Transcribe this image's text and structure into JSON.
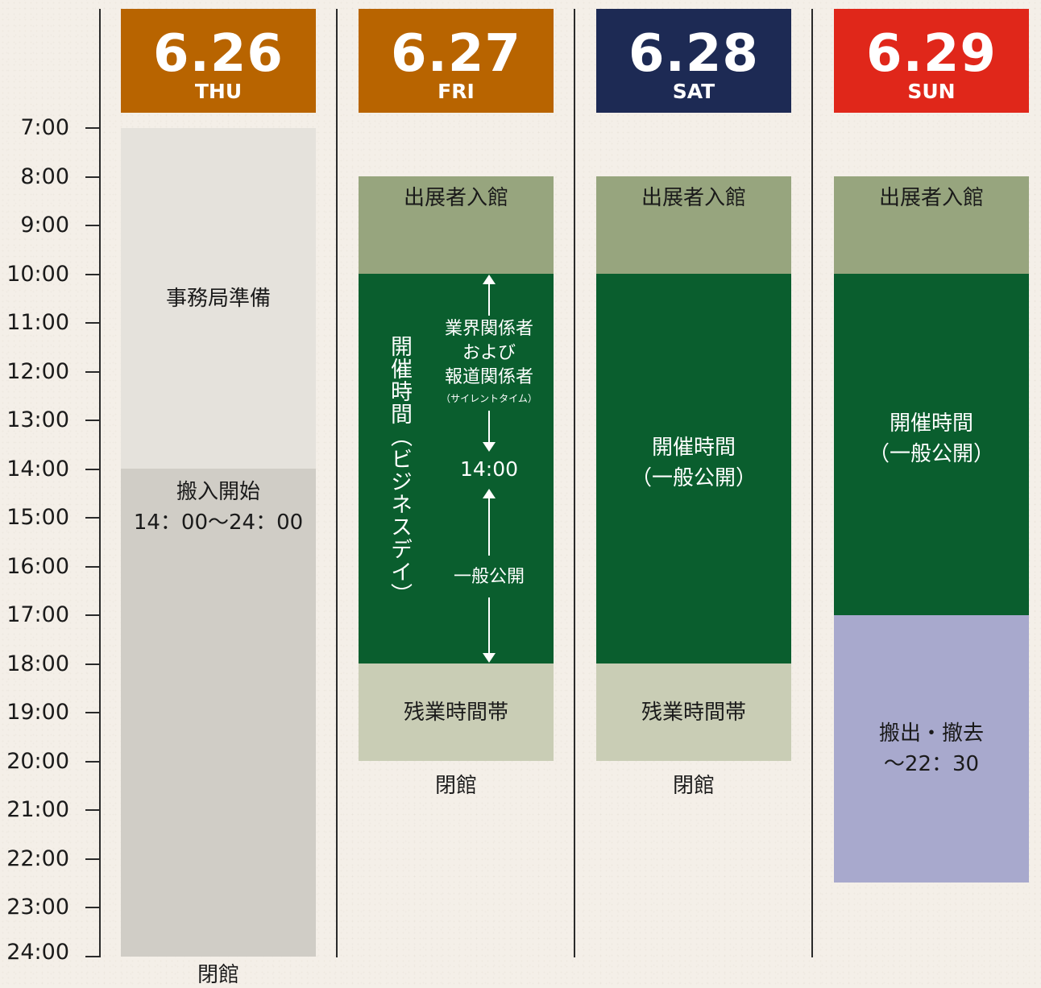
{
  "time_axis": [
    "7:00",
    "8:00",
    "9:00",
    "10:00",
    "11:00",
    "12:00",
    "13:00",
    "14:00",
    "15:00",
    "16:00",
    "17:00",
    "18:00",
    "19:00",
    "20:00",
    "21:00",
    "22:00",
    "23:00",
    "24:00"
  ],
  "days": [
    {
      "date": "6.26",
      "dow": "THU",
      "color": "#b86400"
    },
    {
      "date": "6.27",
      "dow": "FRI",
      "color": "#b86400"
    },
    {
      "date": "6.28",
      "dow": "SAT",
      "color": "#1d2a54"
    },
    {
      "date": "6.29",
      "dow": "SUN",
      "color": "#e0271a"
    }
  ],
  "colors": {
    "prep": "#e5e2dc",
    "move_in": "#d0cdc6",
    "exhibitor_entry": "#97a57e",
    "open": "#0a5e2e",
    "overtime": "#c9cdb5",
    "move_out": "#a8a9cd"
  },
  "thu": {
    "prep_label": "事務局準備",
    "move_in_label": "搬入開始",
    "move_in_time": "14：00〜24：00",
    "bottom_cut": "閉館"
  },
  "fri": {
    "entry": "出展者入館",
    "open_vertical": "開催時間（ビジネスデイ）",
    "biz_line1": "業界関係者",
    "biz_line2": "および",
    "biz_line3": "報道関係者",
    "biz_note": "（サイレントタイム）",
    "switch_time": "14:00",
    "public": "一般公開",
    "overtime": "残業時間帯",
    "closed": "閉館"
  },
  "sat": {
    "entry": "出展者入館",
    "open_line1": "開催時間",
    "open_line2": "（一般公開）",
    "overtime": "残業時間帯",
    "closed": "閉館"
  },
  "sun": {
    "entry": "出展者入館",
    "open_line1": "開催時間",
    "open_line2": "（一般公開）",
    "move_out_line1": "搬出・撤去",
    "move_out_line2": "〜22：30"
  }
}
